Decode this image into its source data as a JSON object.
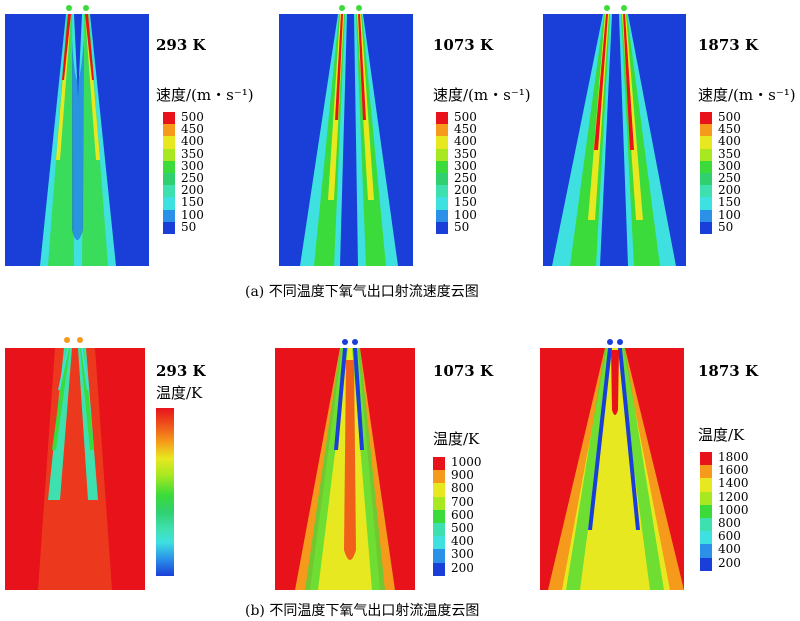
{
  "row_a": {
    "caption": "(a) 不同温度下氧气出口射流速度云图",
    "panels": [
      {
        "temp": "293 K",
        "cb_title": "速度/(m・s⁻¹)"
      },
      {
        "temp": "1073 K",
        "cb_title": "速度/(m・s⁻¹)"
      },
      {
        "temp": "1873 K",
        "cb_title": "速度/(m・s⁻¹)"
      }
    ],
    "ticks": [
      "500",
      "450",
      "400",
      "350",
      "300",
      "250",
      "200",
      "150",
      "100",
      "50"
    ]
  },
  "row_b": {
    "caption": "(b) 不同温度下氧气出口射流温度云图",
    "panels": [
      {
        "temp": "293 K",
        "cb_title": "温度/K"
      },
      {
        "temp": "1073 K",
        "cb_title": "温度/K"
      },
      {
        "temp": "1873 K",
        "cb_title": "温度/K"
      }
    ],
    "ticks_1073": [
      "1000",
      "900",
      "800",
      "700",
      "600",
      "500",
      "400",
      "300",
      "200"
    ],
    "ticks_1873": [
      "1800",
      "1600",
      "1400",
      "1200",
      "1000",
      "800",
      "600",
      "400",
      "200"
    ]
  },
  "colors": {
    "low": "#1a3fd8",
    "cyan": "#3fe0e0",
    "green": "#3adb3a",
    "yellow": "#e8e820",
    "orange": "#f59a1a",
    "red": "#e8121b"
  }
}
